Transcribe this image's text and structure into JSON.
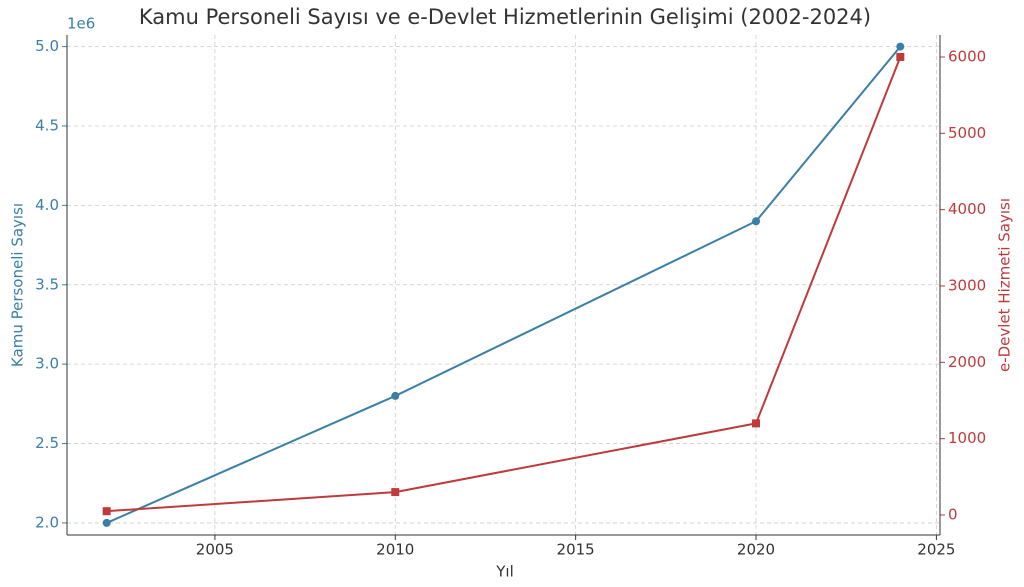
{
  "chart_data": {
    "type": "line",
    "title": "Kamu Personeli Sayısı ve e-Devlet Hizmetlerinin Gelişimi (2002-2024)",
    "x_label": "Yıl",
    "y_label": "Kamu Personeli Sayısı",
    "y2_label": "e-Devlet Hizmeti Sayısı",
    "y_offset_label": "1e6",
    "x": [
      2002,
      2010,
      2020,
      2024
    ],
    "series": [
      {
        "name": "Kamu Personeli Sayısı",
        "color": "#3a7fa6",
        "marker": "circle",
        "values": [
          2000000,
          2800000,
          3900000,
          5000000
        ]
      },
      {
        "name": "e-Devlet Hizmeti Sayısı",
        "color": "#c0393b",
        "marker": "square",
        "axis": "y2",
        "values": [
          50,
          300,
          1200,
          6000
        ]
      }
    ],
    "xlim": [
      2000.9,
      2025.1
    ],
    "xticks": [
      2005,
      2010,
      2015,
      2020,
      2025
    ],
    "ylim": [
      1924000,
      5073000
    ],
    "yticks": [
      {
        "value": 2000000,
        "label": "2.0"
      },
      {
        "value": 2500000,
        "label": "2.5"
      },
      {
        "value": 3000000,
        "label": "3.0"
      },
      {
        "value": 3500000,
        "label": "3.5"
      },
      {
        "value": 4000000,
        "label": "4.0"
      },
      {
        "value": 4500000,
        "label": "4.5"
      },
      {
        "value": 5000000,
        "label": "5.0"
      }
    ],
    "y2lim": [
      -262,
      6288
    ],
    "y2ticks": [
      0,
      1000,
      2000,
      3000,
      4000,
      5000,
      6000
    ],
    "grid": true
  }
}
